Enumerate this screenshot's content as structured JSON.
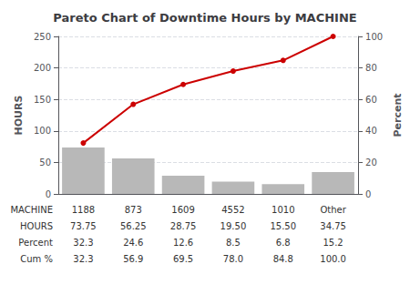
{
  "chart_data": {
    "type": "bar",
    "title": "Pareto Chart of Downtime Hours by MACHINE",
    "categories": [
      "1188",
      "873",
      "1609",
      "4552",
      "1010",
      "Other"
    ],
    "series": [
      {
        "type": "bar",
        "color": "#b8b8b8",
        "values": [
          73.75,
          56.25,
          28.75,
          19.5,
          15.5,
          34.75
        ]
      },
      {
        "type": "line",
        "axis": "y2",
        "color": "#cc0000",
        "marker": "circle",
        "values": [
          32.3,
          56.9,
          69.5,
          78.0,
          84.8,
          100.0
        ]
      }
    ],
    "ylabel": "HOURS",
    "y2label": "Percent",
    "ylim": [
      0,
      250
    ],
    "yticks": [
      0,
      50,
      100,
      150,
      200,
      250
    ],
    "y2lim": [
      0,
      100
    ],
    "y2ticks": [
      0,
      20,
      40,
      60,
      80,
      100
    ],
    "grid": true,
    "tick_labels": "y",
    "table": {
      "labels": [
        "MACHINE",
        "HOURS",
        "Percent",
        "Cum %"
      ],
      "rows": [
        [
          "1188",
          "873",
          "1609",
          "4552",
          "1010",
          "Other"
        ],
        [
          "73.75",
          "56.25",
          "28.75",
          "19.50",
          "15.50",
          "34.75"
        ],
        [
          "32.3",
          "24.6",
          "12.6",
          "8.5",
          "6.8",
          "15.2"
        ],
        [
          "32.3",
          "56.9",
          "69.5",
          "78.0",
          "84.8",
          "100.0"
        ]
      ]
    }
  }
}
